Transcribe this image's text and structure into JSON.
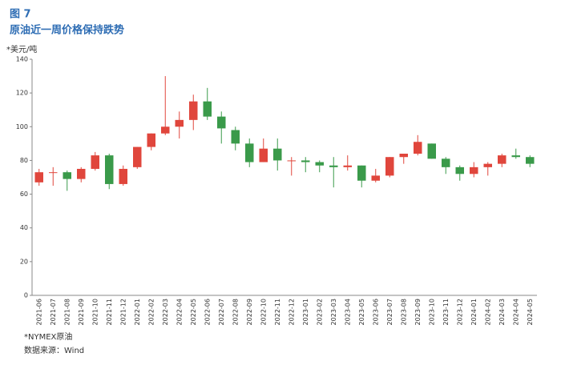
{
  "chart_data": {
    "type": "candlestick",
    "figure_label": "图 7",
    "title": "原油近一周价格保持跌势",
    "y_label": "*美元/吨",
    "note": "*NYMEX原油",
    "source": "数据来源：Wind",
    "up_color": "#e0463c",
    "down_color": "#3a9a4a",
    "categories": [
      "2021-06",
      "2021-07",
      "2021-08",
      "2021-09",
      "2021-10",
      "2021-11",
      "2021-12",
      "2022-01",
      "2022-02",
      "2022-03",
      "2022-04",
      "2022-05",
      "2022-06",
      "2022-07",
      "2022-08",
      "2022-09",
      "2022-10",
      "2022-11",
      "2022-12",
      "2023-01",
      "2023-02",
      "2023-03",
      "2023-04",
      "2023-05",
      "2023-06",
      "2023-07",
      "2023-08",
      "2023-09",
      "2023-10",
      "2023-11",
      "2023-12",
      "2024-01",
      "2024-02",
      "2024-03",
      "2024-04",
      "2024-05"
    ],
    "open": [
      67,
      73,
      73,
      69,
      75,
      83,
      66,
      76,
      88,
      96,
      100,
      104,
      115,
      106,
      98,
      90,
      79,
      87,
      80,
      80,
      79,
      77,
      76,
      77,
      68,
      71,
      82,
      84,
      90,
      81,
      76,
      72,
      76,
      78,
      83,
      82
    ],
    "high": [
      75,
      76,
      74,
      76,
      85,
      84,
      77,
      88,
      96,
      130,
      109,
      119,
      123,
      109,
      100,
      93,
      93,
      93,
      82,
      82,
      80,
      82,
      83,
      77,
      75,
      82,
      84,
      95,
      90,
      82,
      77,
      79,
      79,
      84,
      87,
      83
    ],
    "low": [
      65,
      65,
      62,
      67,
      74,
      63,
      65,
      75,
      86,
      95,
      93,
      98,
      104,
      90,
      86,
      76,
      79,
      74,
      71,
      73,
      73,
      64,
      74,
      64,
      67,
      70,
      78,
      83,
      81,
      72,
      68,
      70,
      71,
      76,
      81,
      76
    ],
    "close": [
      73,
      73,
      69,
      75,
      83,
      66,
      75,
      88,
      96,
      100,
      104,
      115,
      106,
      99,
      90,
      79,
      87,
      80,
      80,
      79,
      77,
      76,
      77,
      68,
      71,
      82,
      84,
      91,
      81,
      76,
      72,
      76,
      78,
      83,
      82,
      78
    ],
    "ylim": [
      0,
      140
    ],
    "yticks": [
      0,
      20,
      40,
      60,
      80,
      100,
      120,
      140
    ]
  }
}
